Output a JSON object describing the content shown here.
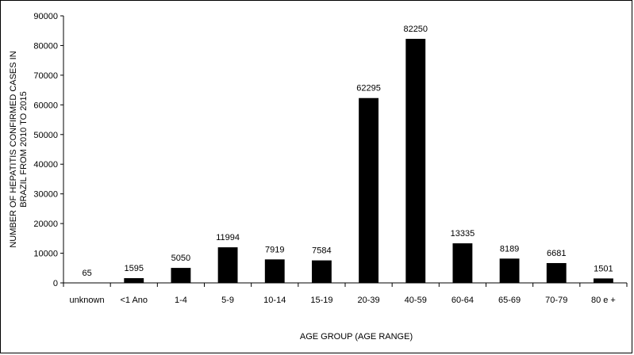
{
  "chart_data": {
    "type": "bar",
    "title": "",
    "xlabel": "AGE GROUP (AGE RANGE)",
    "ylabel_lines": [
      "NUMBER OF HEPATITIS CONFIRMED CASES IN",
      "BRAZIL FROM 2010 TO 2015"
    ],
    "categories": [
      "unknown",
      "<1 Ano",
      "1-4",
      "5-9",
      "10-14",
      "15-19",
      "20-39",
      "40-59",
      "60-64",
      "65-69",
      "70-79",
      "80 e +"
    ],
    "values": [
      65,
      1595,
      5050,
      11994,
      7919,
      7584,
      62295,
      82250,
      13335,
      8189,
      6681,
      1501
    ],
    "ylim": [
      0,
      90000
    ],
    "yticks": [
      0,
      10000,
      20000,
      30000,
      40000,
      50000,
      60000,
      70000,
      80000,
      90000
    ],
    "grid": false,
    "legend": "none",
    "bar_color": "#000000"
  }
}
